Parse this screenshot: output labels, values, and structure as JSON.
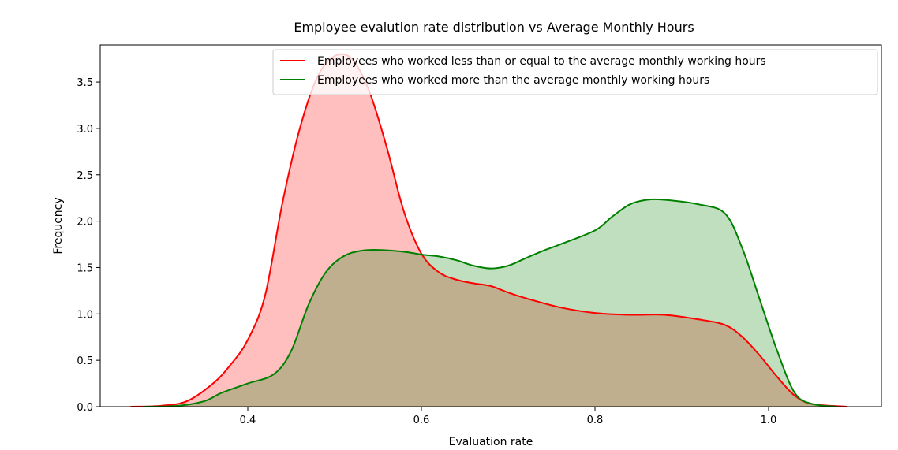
{
  "chart_data": {
    "type": "area",
    "title": "Employee evalution rate distribution vs Average Monthly Hours",
    "xlabel": "Evaluation rate",
    "ylabel": "Frequency",
    "xlim": [
      0.23,
      1.13
    ],
    "ylim": [
      0.0,
      3.9
    ],
    "xticks": [
      0.4,
      0.6,
      0.8,
      1.0
    ],
    "xtick_labels": [
      "0.4",
      "0.6",
      "0.8",
      "1.0"
    ],
    "yticks": [
      0.0,
      0.5,
      1.0,
      1.5,
      2.0,
      2.5,
      3.0,
      3.5
    ],
    "ytick_labels": [
      "0.0",
      "0.5",
      "1.0",
      "1.5",
      "2.0",
      "2.5",
      "3.0",
      "3.5"
    ],
    "grid": false,
    "legend_position": "top-right",
    "series": [
      {
        "name": "Employees who worked less than or equal to the average monthly working hours",
        "color": "#ff0000",
        "fill": "#ff0000",
        "points": [
          [
            0.265,
            0.0
          ],
          [
            0.3,
            0.01
          ],
          [
            0.33,
            0.06
          ],
          [
            0.36,
            0.25
          ],
          [
            0.38,
            0.45
          ],
          [
            0.4,
            0.72
          ],
          [
            0.42,
            1.2
          ],
          [
            0.44,
            2.2
          ],
          [
            0.46,
            3.0
          ],
          [
            0.48,
            3.55
          ],
          [
            0.5,
            3.78
          ],
          [
            0.52,
            3.75
          ],
          [
            0.54,
            3.4
          ],
          [
            0.56,
            2.8
          ],
          [
            0.58,
            2.1
          ],
          [
            0.6,
            1.65
          ],
          [
            0.62,
            1.45
          ],
          [
            0.64,
            1.37
          ],
          [
            0.66,
            1.33
          ],
          [
            0.68,
            1.3
          ],
          [
            0.7,
            1.23
          ],
          [
            0.72,
            1.17
          ],
          [
            0.76,
            1.07
          ],
          [
            0.8,
            1.01
          ],
          [
            0.84,
            0.99
          ],
          [
            0.88,
            0.99
          ],
          [
            0.92,
            0.94
          ],
          [
            0.95,
            0.88
          ],
          [
            0.97,
            0.75
          ],
          [
            0.99,
            0.55
          ],
          [
            1.01,
            0.32
          ],
          [
            1.03,
            0.12
          ],
          [
            1.05,
            0.03
          ],
          [
            1.09,
            0.0
          ]
        ]
      },
      {
        "name": "Employees who worked more than the average monthly working hours",
        "color": "#008000",
        "fill": "#008000",
        "points": [
          [
            0.28,
            0.0
          ],
          [
            0.32,
            0.01
          ],
          [
            0.35,
            0.06
          ],
          [
            0.37,
            0.15
          ],
          [
            0.4,
            0.25
          ],
          [
            0.43,
            0.35
          ],
          [
            0.45,
            0.6
          ],
          [
            0.47,
            1.1
          ],
          [
            0.49,
            1.45
          ],
          [
            0.51,
            1.62
          ],
          [
            0.53,
            1.68
          ],
          [
            0.55,
            1.69
          ],
          [
            0.58,
            1.67
          ],
          [
            0.6,
            1.64
          ],
          [
            0.62,
            1.62
          ],
          [
            0.64,
            1.58
          ],
          [
            0.66,
            1.52
          ],
          [
            0.68,
            1.49
          ],
          [
            0.7,
            1.52
          ],
          [
            0.72,
            1.6
          ],
          [
            0.74,
            1.68
          ],
          [
            0.76,
            1.75
          ],
          [
            0.8,
            1.9
          ],
          [
            0.82,
            2.05
          ],
          [
            0.84,
            2.18
          ],
          [
            0.86,
            2.23
          ],
          [
            0.88,
            2.23
          ],
          [
            0.92,
            2.18
          ],
          [
            0.95,
            2.08
          ],
          [
            0.97,
            1.7
          ],
          [
            0.99,
            1.15
          ],
          [
            1.01,
            0.6
          ],
          [
            1.03,
            0.15
          ],
          [
            1.05,
            0.03
          ],
          [
            1.08,
            0.0
          ]
        ]
      }
    ]
  }
}
